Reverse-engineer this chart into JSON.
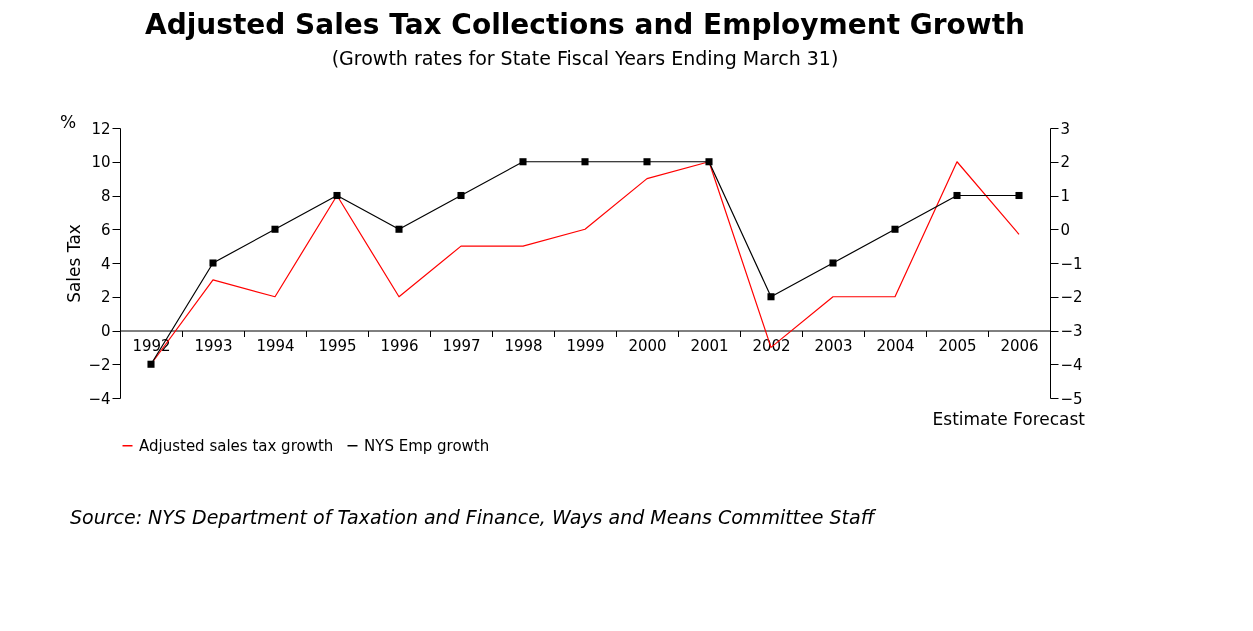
{
  "chart_data": {
    "type": "line",
    "title": "Adjusted Sales Tax Collections and Employment Growth",
    "subtitle": "(Growth rates for State Fiscal Years Ending March 31)",
    "ylabel": "Sales Tax",
    "categories": [
      "1992",
      "1993",
      "1994",
      "1995",
      "1996",
      "1997",
      "1998",
      "1999",
      "2000",
      "2001",
      "2002",
      "2003",
      "2004",
      "2005",
      "2006"
    ],
    "series": [
      {
        "name": "Adjusted sales tax growth",
        "color": "#ff0000",
        "values": [
          -2,
          3,
          2,
          8,
          2,
          5,
          5,
          6,
          9,
          10,
          -1,
          2,
          2,
          10,
          5.7
        ],
        "marker": "none"
      },
      {
        "name": "NYS Emp growth",
        "color": "#000000",
        "values": [
          -4,
          -1,
          0,
          1,
          0,
          1,
          2,
          2,
          2,
          2,
          -2,
          -1,
          0,
          1,
          1
        ],
        "axis": "y2",
        "marker": "square"
      }
    ],
    "ylim": [
      -4,
      12
    ],
    "yticks": [
      -4,
      -2,
      0,
      2,
      4,
      6,
      8,
      10,
      12
    ],
    "y2lim": [
      -5,
      3
    ],
    "y2ticks": [
      -5,
      -4,
      -3,
      -2,
      -1,
      0,
      1,
      2,
      3
    ],
    "grid": false,
    "legend": "bottom",
    "annotations": [
      "%",
      "Estimate Forecast",
      "Source: NYS Department of Taxation and Finance, Ways and Means Committee Staff"
    ]
  }
}
